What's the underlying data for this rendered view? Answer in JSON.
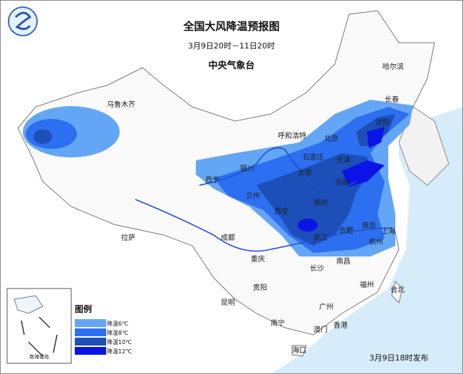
{
  "header": {
    "title": "全国大风降温预报图",
    "period": "3月9日20时－11日20时",
    "issuer": "中央气象台"
  },
  "cities": [
    "乌鲁木齐",
    "哈尔滨",
    "长春",
    "沈阳",
    "呼和浩特",
    "北京",
    "石家庄",
    "天津",
    "银川",
    "太原",
    "西宁",
    "兰州",
    "济南",
    "郑州",
    "西安",
    "拉萨",
    "成都",
    "合肥",
    "南京",
    "上海",
    "武汉",
    "杭州",
    "重庆",
    "长沙",
    "南昌",
    "贵阳",
    "福州",
    "昆明",
    "台北",
    "广州",
    "南宁",
    "澳门",
    "香港",
    "海口"
  ],
  "legend": {
    "title": "图例",
    "items": [
      {
        "label": "降温6℃",
        "color": "#64a6f6"
      },
      {
        "label": "降温8℃",
        "color": "#2c6ff0"
      },
      {
        "label": "降温10℃",
        "color": "#1c4fb8"
      },
      {
        "label": "降温12℃",
        "color": "#0a14e6"
      }
    ]
  },
  "inset_label": "南海诸岛",
  "issued": "3月9日18时发布"
}
